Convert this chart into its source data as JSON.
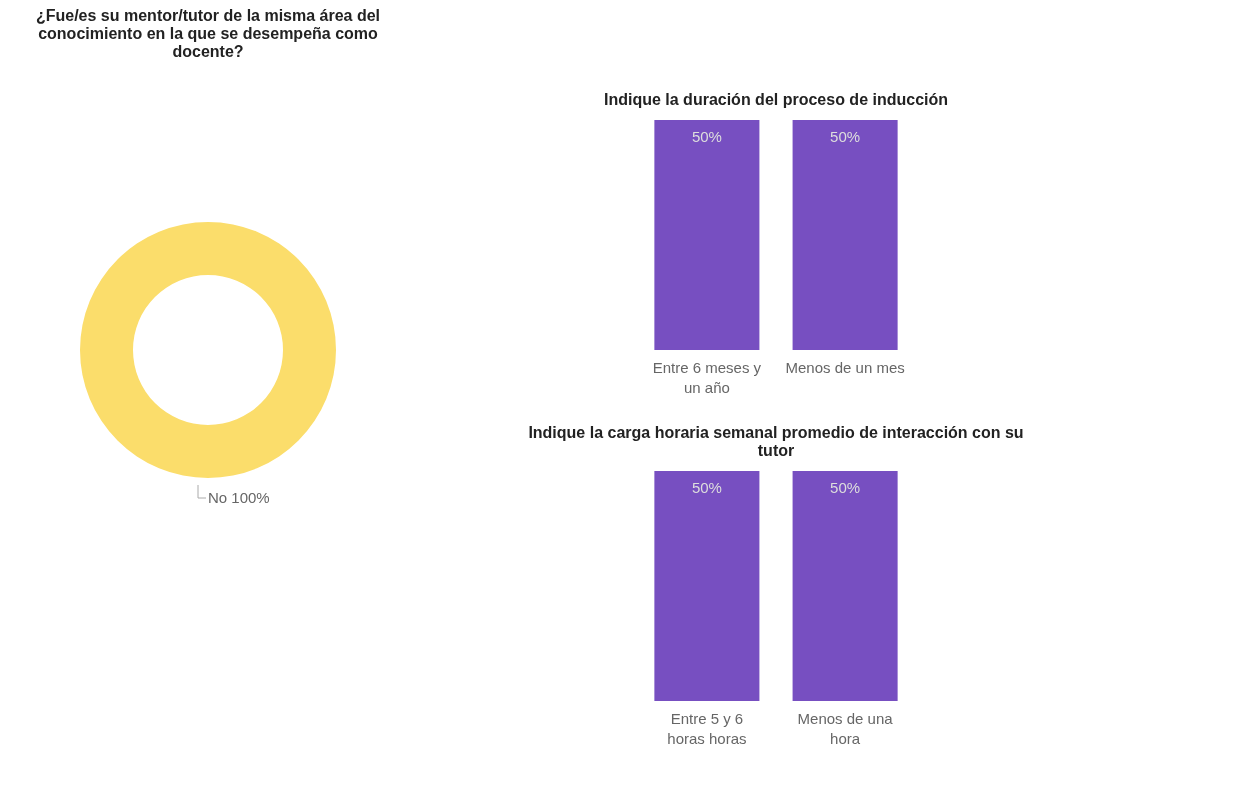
{
  "chart_data": [
    {
      "type": "donut",
      "title": "¿Fue/es su mentor/tutor de la misma área del conocimiento en la que se desempeña como docente?",
      "categories": [
        "No"
      ],
      "values": [
        100
      ],
      "colors": [
        "#fbdd6b"
      ],
      "value_labels": [
        "100%"
      ]
    },
    {
      "type": "bar",
      "title": "Indique la duración del proceso de inducción",
      "categories": [
        "Entre 6 meses y un año",
        "Menos de un mes"
      ],
      "values": [
        50,
        50
      ],
      "colors": [
        "#774fc1",
        "#774fc1"
      ],
      "value_labels": [
        "50%",
        "50%"
      ],
      "tick_labels": "x"
    },
    {
      "type": "bar",
      "title": "Indique la carga horaria semanal promedio de interacción con su tutor",
      "categories": [
        "Entre 5 y 6 horas horas",
        "Menos de una hora"
      ],
      "values": [
        50,
        50
      ],
      "colors": [
        "#774fc1",
        "#774fc1"
      ],
      "value_labels": [
        "50%",
        "50%"
      ],
      "tick_labels": "x"
    }
  ]
}
